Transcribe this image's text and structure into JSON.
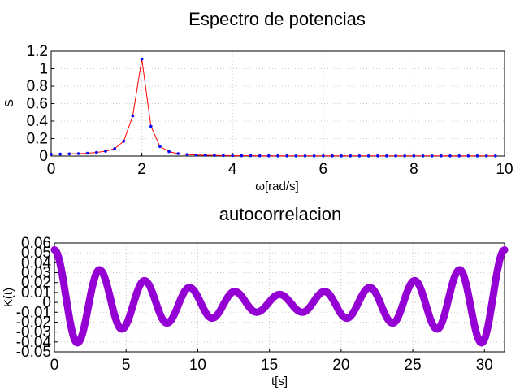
{
  "chart_data": [
    {
      "type": "line",
      "title": "Espectro de potencias",
      "xlabel": "ω[rad/s]",
      "ylabel": "S",
      "xlim": [
        0,
        10
      ],
      "ylim": [
        0,
        1.2
      ],
      "xticks": [
        0,
        2,
        4,
        6,
        8,
        10
      ],
      "yticks": [
        0,
        0.2,
        0.4,
        0.6,
        0.8,
        1,
        1.2
      ],
      "grid": true,
      "colors": {
        "line": "#ff0000",
        "marker": "#0000ff"
      },
      "series": [
        {
          "x": [
            0,
            0.2,
            0.4,
            0.6,
            0.8,
            1.0,
            1.2,
            1.4,
            1.6,
            1.8,
            2.0,
            2.2,
            2.4,
            2.6,
            2.8,
            3.0,
            3.2,
            3.4,
            3.6,
            3.8,
            4.0,
            4.2,
            4.4,
            4.6,
            4.8,
            5.0,
            5.2,
            5.4,
            5.6,
            5.8,
            6.0,
            6.2,
            6.4,
            6.6,
            6.8,
            7.0,
            7.2,
            7.4,
            7.6,
            7.8,
            8.0,
            8.2,
            8.4,
            8.6,
            8.8,
            9.0,
            9.2,
            9.4,
            9.6,
            9.8
          ],
          "y": [
            0.02,
            0.022,
            0.025,
            0.028,
            0.033,
            0.042,
            0.055,
            0.085,
            0.17,
            0.46,
            1.11,
            0.34,
            0.11,
            0.05,
            0.028,
            0.018,
            0.012,
            0.009,
            0.007,
            0.006,
            0.005,
            0.004,
            0.004,
            0.003,
            0.003,
            0.003,
            0.002,
            0.002,
            0.002,
            0.002,
            0.002,
            0.002,
            0.002,
            0.002,
            0.002,
            0.002,
            0.002,
            0.002,
            0.002,
            0.002,
            0.002,
            0.002,
            0.002,
            0.002,
            0.002,
            0.002,
            0.002,
            0.002,
            0.002,
            0.002
          ]
        }
      ]
    },
    {
      "type": "line",
      "title": "autocorrelacion",
      "xlabel": "t[s]",
      "ylabel": "K(t)",
      "xlim": [
        0,
        31.4
      ],
      "ylim": [
        -0.05,
        0.06
      ],
      "xticks": [
        0,
        5,
        10,
        15,
        20,
        25,
        30
      ],
      "yticks": [
        -0.05,
        -0.04,
        -0.03,
        -0.02,
        -0.01,
        0,
        0.01,
        0.02,
        0.03,
        0.04,
        0.05,
        0.06
      ],
      "ytick_labels": [
        "-0.05",
        "-0.04",
        "-0.03",
        "-0.02",
        "-0.01",
        "0",
        "0.01",
        "0.02",
        "0.03",
        "0.04",
        "0.05",
        "0.06"
      ],
      "grid": true,
      "colors": {
        "line": "#9400d3"
      },
      "series": [
        {
          "x": [
            0,
            1.6,
            3.14,
            4.7,
            6.28,
            7.85,
            9.42,
            11.0,
            12.57,
            14.1,
            15.71,
            17.3,
            18.85,
            20.4,
            22.0,
            23.6,
            25.13,
            26.7,
            28.27,
            29.8,
            31.4
          ],
          "y": [
            0.053,
            -0.041,
            0.033,
            -0.027,
            0.022,
            -0.021,
            0.015,
            -0.016,
            0.011,
            -0.01,
            0.008,
            -0.01,
            0.011,
            -0.016,
            0.015,
            -0.021,
            0.022,
            -0.027,
            0.033,
            -0.041,
            0.053
          ]
        }
      ]
    }
  ]
}
